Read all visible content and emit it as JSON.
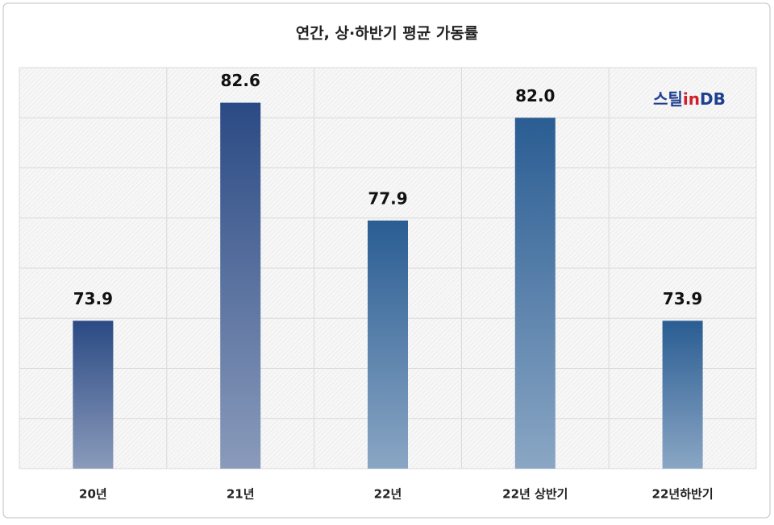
{
  "chart_data": {
    "type": "bar",
    "title": "연간, 상·하반기 평균 가동률",
    "categories": [
      "20년",
      "21년",
      "22년",
      "22년 상반기",
      "22년하반기"
    ],
    "values": [
      73.9,
      82.6,
      77.9,
      82.0,
      73.9
    ],
    "value_labels": [
      "73.9",
      "82.6",
      "77.9",
      "82.0",
      "73.9"
    ],
    "colors": [
      "#2b4a84",
      "#2b4a84",
      "#2a5d93",
      "#2a5d93",
      "#2a5d93"
    ],
    "ylim": [
      68,
      84
    ],
    "yticks": [
      68,
      70,
      72,
      74,
      76,
      78,
      80,
      82,
      84
    ],
    "grid": true,
    "watermark": [
      "스틸",
      "in",
      "DB"
    ]
  }
}
